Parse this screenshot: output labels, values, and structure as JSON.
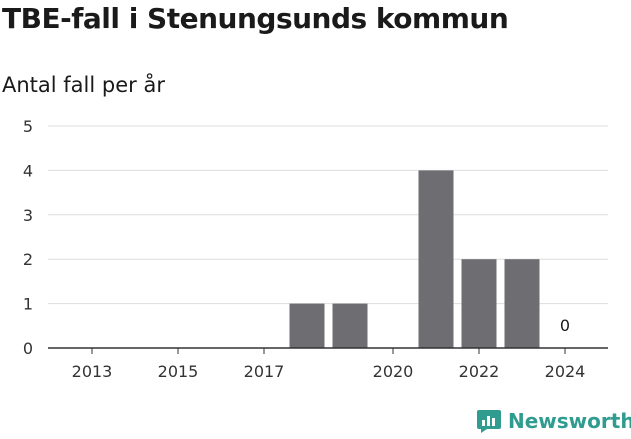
{
  "header": {
    "title": "TBE-fall i Stenungsunds kommun",
    "subtitle": "Antal fall per år"
  },
  "brand": {
    "name": "Newsworthy",
    "color": "#2f9c8f"
  },
  "chart_data": {
    "type": "bar",
    "x": [
      2013,
      2014,
      2015,
      2016,
      2017,
      2018,
      2019,
      2020,
      2021,
      2022,
      2023,
      2024
    ],
    "values": [
      0,
      0,
      0,
      0,
      0,
      1,
      1,
      0,
      4,
      2,
      2,
      0
    ],
    "tick_labels_x": [
      "2013",
      "2015",
      "2017",
      "2020",
      "2022",
      "2024"
    ],
    "tick_labels_x_at": [
      2013,
      2015,
      2017,
      2020,
      2022,
      2024
    ],
    "ylim": [
      0,
      5
    ],
    "yticks": [
      0,
      1,
      2,
      3,
      4,
      5
    ],
    "annotations": [
      {
        "x": 2024,
        "text": "0"
      }
    ],
    "grid": true,
    "bar_color": "#6e6d72"
  }
}
